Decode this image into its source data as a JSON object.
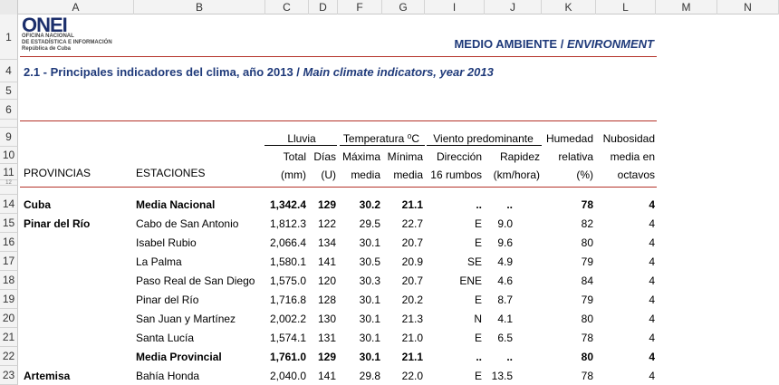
{
  "columns": [
    "A",
    "B",
    "C",
    "D",
    "F",
    "G",
    "I",
    "J",
    "K",
    "L",
    "M",
    "N"
  ],
  "rows": [
    "1",
    "4",
    "5",
    "6",
    "9",
    "10",
    "11",
    "12",
    "14",
    "15",
    "16",
    "17",
    "18",
    "19",
    "20",
    "21",
    "22",
    "23"
  ],
  "logo": {
    "mark": "ONEI",
    "line1": "OFICINA NACIONAL",
    "line2": "DE ESTADÍSTICA E INFORMACIÓN",
    "line3": "República de Cuba"
  },
  "header_right": {
    "es": "MEDIO AMBIENTE / ",
    "en": "ENVIRONMENT"
  },
  "table_title": {
    "es": "2.1 - Principales indicadores del clima, año 2013 / ",
    "en": "Main climate indicators, year 2013"
  },
  "group_headers": {
    "lluvia": "Lluvia",
    "temperatura": "Temperatura ⁰C",
    "viento": "Viento predominante",
    "humedad": "Humedad",
    "nubosidad": "Nubosidad"
  },
  "sub_headers_1": {
    "total": "Total",
    "dias": "Días",
    "maxima": "Máxima",
    "minima": "Mínima",
    "direccion": "Dirección",
    "rapidez": "Rapidez",
    "relativa": "relativa",
    "media_en": "media en"
  },
  "sub_headers_2": {
    "provincias": "PROVINCIAS",
    "estaciones": "ESTACIONES",
    "mm": "(mm)",
    "u": "(U)",
    "media1": "media",
    "media2": "media",
    "rumbos": "16 rumbos",
    "kmhora": "(km/hora)",
    "pct": "(%)",
    "octavos": "octavos"
  },
  "data_rows": [
    {
      "prov": "Cuba",
      "est": "Media Nacional",
      "total": "1,342.4",
      "dias": "129",
      "max": "30.2",
      "min": "21.1",
      "dir": "..",
      "rap": "..",
      "hum": "78",
      "nub": "4",
      "bold": true
    },
    {
      "prov": "Pinar del Río",
      "est": "Cabo de San Antonio",
      "total": "1,812.3",
      "dias": "122",
      "max": "29.5",
      "min": "22.7",
      "dir": "E",
      "rap": "9.0",
      "hum": "82",
      "nub": "4",
      "bold": false
    },
    {
      "prov": "",
      "est": "Isabel Rubio",
      "total": "2,066.4",
      "dias": "134",
      "max": "30.1",
      "min": "20.7",
      "dir": "E",
      "rap": "9.6",
      "hum": "80",
      "nub": "4",
      "bold": false
    },
    {
      "prov": "",
      "est": "La Palma",
      "total": "1,580.1",
      "dias": "141",
      "max": "30.5",
      "min": "20.9",
      "dir": "SE",
      "rap": "4.9",
      "hum": "79",
      "nub": "4",
      "bold": false
    },
    {
      "prov": "",
      "est": "Paso Real de San Diego",
      "total": "1,575.0",
      "dias": "120",
      "max": "30.3",
      "min": "20.7",
      "dir": "ENE",
      "rap": "4.6",
      "hum": "84",
      "nub": "4",
      "bold": false
    },
    {
      "prov": "",
      "est": "Pinar del Río",
      "total": "1,716.8",
      "dias": "128",
      "max": "30.1",
      "min": "20.2",
      "dir": "E",
      "rap": "8.7",
      "hum": "79",
      "nub": "4",
      "bold": false
    },
    {
      "prov": "",
      "est": "San Juan y Martínez",
      "total": "2,002.2",
      "dias": "130",
      "max": "30.1",
      "min": "21.3",
      "dir": "N",
      "rap": "4.1",
      "hum": "80",
      "nub": "4",
      "bold": false
    },
    {
      "prov": "",
      "est": "Santa Lucía",
      "total": "1,574.1",
      "dias": "131",
      "max": "30.1",
      "min": "21.0",
      "dir": "E",
      "rap": "6.5",
      "hum": "78",
      "nub": "4",
      "bold": false
    },
    {
      "prov": "",
      "est": "Media Provincial",
      "total": "1,761.0",
      "dias": "129",
      "max": "30.1",
      "min": "21.1",
      "dir": "..",
      "rap": "..",
      "hum": "80",
      "nub": "4",
      "bold": true
    },
    {
      "prov": "Artemisa",
      "est": "Bahía Honda",
      "total": "2,040.0",
      "dias": "141",
      "max": "29.8",
      "min": "22.0",
      "dir": "E",
      "rap": "13.5",
      "hum": "78",
      "nub": "4",
      "bold": false
    }
  ]
}
